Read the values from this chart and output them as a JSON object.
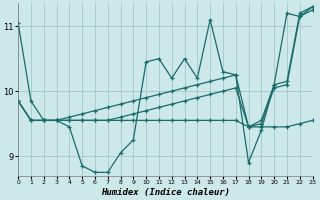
{
  "xlabel": "Humidex (Indice chaleur)",
  "background_color": "#cde8e8",
  "grid_color": "#a8cccc",
  "line_color": "#1a6b6b",
  "xlim": [
    0,
    23
  ],
  "ylim": [
    8.7,
    11.35
  ],
  "yticks": [
    9,
    10,
    11
  ],
  "xticks": [
    0,
    1,
    2,
    3,
    4,
    5,
    6,
    7,
    8,
    9,
    10,
    11,
    12,
    13,
    14,
    15,
    16,
    17,
    18,
    19,
    20,
    21,
    22,
    23
  ],
  "series": [
    [
      11.05,
      9.85,
      9.55,
      9.55,
      9.45,
      8.85,
      8.75,
      8.75,
      9.05,
      9.25,
      10.45,
      10.5,
      10.2,
      10.5,
      10.2,
      11.1,
      10.3,
      10.25,
      8.9,
      9.4,
      10.1,
      11.2,
      11.15,
      11.3
    ],
    [
      9.85,
      9.55,
      9.55,
      9.55,
      9.6,
      9.65,
      9.7,
      9.75,
      9.8,
      9.85,
      9.9,
      9.95,
      10.0,
      10.05,
      10.1,
      10.15,
      10.2,
      10.25,
      9.45,
      9.55,
      10.1,
      10.15,
      11.2,
      11.3
    ],
    [
      9.85,
      9.55,
      9.55,
      9.55,
      9.55,
      9.55,
      9.55,
      9.55,
      9.6,
      9.65,
      9.7,
      9.75,
      9.8,
      9.85,
      9.9,
      9.95,
      10.0,
      10.05,
      9.45,
      9.5,
      10.05,
      10.1,
      11.15,
      11.25
    ],
    [
      9.85,
      9.55,
      9.55,
      9.55,
      9.55,
      9.55,
      9.55,
      9.55,
      9.55,
      9.55,
      9.55,
      9.55,
      9.55,
      9.55,
      9.55,
      9.55,
      9.55,
      9.55,
      9.45,
      9.45,
      9.45,
      9.45,
      9.5,
      9.55
    ]
  ]
}
